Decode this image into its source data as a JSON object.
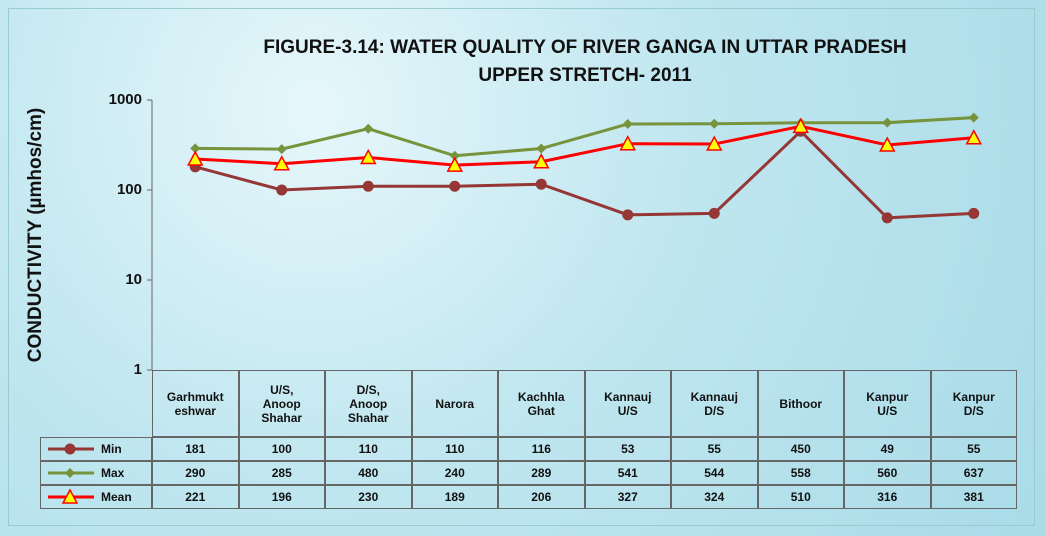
{
  "chart_data": {
    "type": "line",
    "title": "FIGURE-3.14: WATER QUALITY OF RIVER GANGA IN UTTAR PRADESH",
    "subtitle": "UPPER STRETCH- 2011",
    "y_label": "CONDUCTIVITY (µmhos/cm)",
    "categories": [
      "Garhmukt\neshwar",
      "U/S,\nAnoop\nShahar",
      "D/S,\nAnoop\nShahar",
      "Narora",
      "Kachhla\nGhat",
      "Kannauj\nU/S",
      "Kannauj\nD/S",
      "Bithoor",
      "Kanpur\nU/S",
      "Kanpur\nD/S"
    ],
    "series": [
      {
        "name": "Min",
        "color": "#953735",
        "marker": "circle",
        "values": [
          181,
          100,
          110,
          110,
          116,
          53,
          55,
          450,
          49,
          55
        ]
      },
      {
        "name": "Max",
        "color": "#77933c",
        "marker": "diamond",
        "values": [
          290,
          285,
          480,
          240,
          289,
          541,
          544,
          558,
          560,
          637
        ]
      },
      {
        "name": "Mean",
        "color": "#ff0000",
        "marker": "triangle",
        "values": [
          221,
          196,
          230,
          189,
          206,
          327,
          324,
          510,
          316,
          381
        ]
      }
    ],
    "ylim": [
      1,
      1000
    ],
    "yticks": [
      1,
      10,
      100,
      1000
    ],
    "log_scale": true
  }
}
